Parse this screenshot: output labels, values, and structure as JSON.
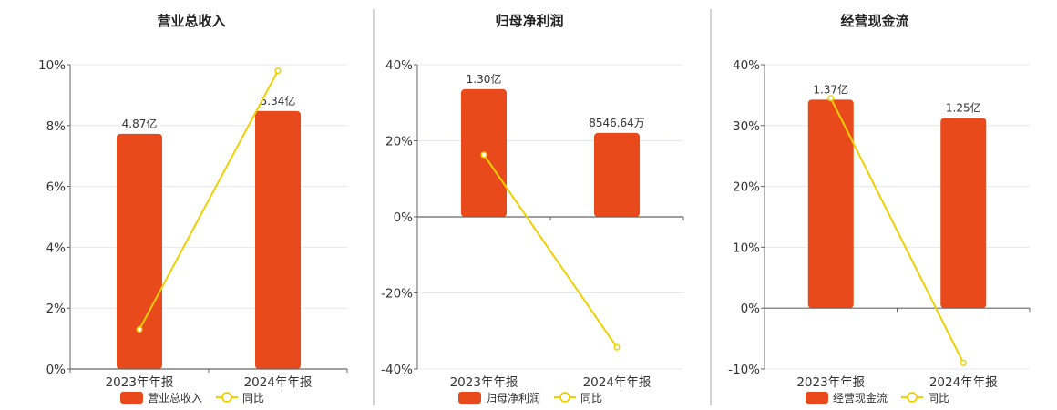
{
  "colors": {
    "bar": "#E84A1C",
    "line": "#F0D000",
    "grid": "#E6E8EF",
    "axis": "#666666",
    "divider": "#AAAAAA"
  },
  "chart_data": [
    {
      "type": "bar",
      "title": "营业总收入",
      "categories": [
        "2023年年报",
        "2024年年报"
      ],
      "series": [
        {
          "name": "营业总收入",
          "type": "bar",
          "labels": [
            "4.87亿",
            "5.34亿"
          ],
          "values": [
            4.87,
            5.34
          ],
          "unit": "亿"
        },
        {
          "name": "同比",
          "type": "line",
          "values": [
            1.3,
            9.8
          ],
          "unit": "%"
        }
      ],
      "yticks": [
        "0%",
        "2%",
        "4%",
        "6%",
        "8%",
        "10%"
      ],
      "ylim": [
        0,
        10
      ],
      "bar_axis_max": 6.3
    },
    {
      "type": "bar",
      "title": "归母净利润",
      "categories": [
        "2023年年报",
        "2024年年报"
      ],
      "series": [
        {
          "name": "归母净利润",
          "type": "bar",
          "labels": [
            "1.30亿",
            "8546.64万"
          ],
          "values": [
            1.3,
            0.8547
          ],
          "unit": "亿"
        },
        {
          "name": "同比",
          "type": "line",
          "values": [
            16.3,
            -34.3
          ],
          "unit": "%"
        }
      ],
      "yticks": [
        "-40%",
        "-20%",
        "0%",
        "20%",
        "40%"
      ],
      "ylim": [
        -40,
        40
      ],
      "bar_axis_max": 1.55
    },
    {
      "type": "bar",
      "title": "经营现金流",
      "categories": [
        "2023年年报",
        "2024年年报"
      ],
      "series": [
        {
          "name": "经营现金流",
          "type": "bar",
          "labels": [
            "1.37亿",
            "1.25亿"
          ],
          "values": [
            1.37,
            1.25
          ],
          "unit": "亿"
        },
        {
          "name": "同比",
          "type": "line",
          "values": [
            34.5,
            -9.0
          ],
          "unit": "%"
        }
      ],
      "yticks": [
        "-10%",
        "0%",
        "10%",
        "20%",
        "30%",
        "40%"
      ],
      "ylim": [
        -10,
        40
      ],
      "bar_axis_max": 1.6
    }
  ]
}
